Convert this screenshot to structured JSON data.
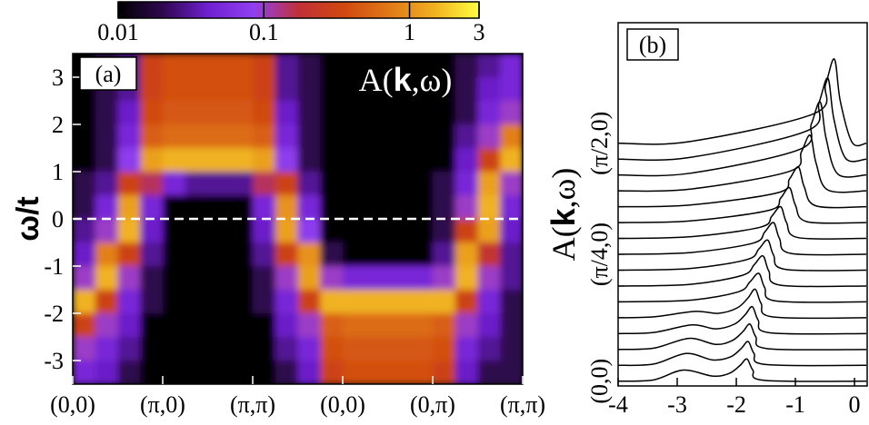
{
  "chart_data": [
    {
      "type": "heatmap",
      "label": "(a)",
      "title": [
        "A(",
        "k",
        ",ω)"
      ],
      "ylabel": "ω/t",
      "x": [
        0.125,
        0.375,
        0.625,
        0.875,
        1.125,
        1.375,
        1.625,
        1.875,
        2.125,
        2.375,
        2.625,
        2.875,
        3.125,
        3.375,
        3.625,
        3.875,
        4.125,
        4.375,
        4.625,
        4.875
      ],
      "y": [
        3.25,
        2.75,
        2.25,
        1.75,
        1.25,
        0.75,
        0.25,
        -0.25,
        -0.75,
        -1.25,
        -1.75,
        -2.25,
        -2.75,
        -3.25
      ],
      "z": [
        [
          0.01,
          0.02,
          0.03,
          0.3,
          0.4,
          0.4,
          0.4,
          0.4,
          0.3,
          0.03,
          0.02,
          0.01,
          0.01,
          0.01,
          0.01,
          0.01,
          0.01,
          0.02,
          0.03,
          0.05
        ],
        [
          0.01,
          0.02,
          0.03,
          0.3,
          0.4,
          0.4,
          0.4,
          0.4,
          0.3,
          0.03,
          0.02,
          0.01,
          0.01,
          0.01,
          0.01,
          0.01,
          0.01,
          0.02,
          0.04,
          0.05
        ],
        [
          0.01,
          0.02,
          0.04,
          0.35,
          0.45,
          0.45,
          0.45,
          0.45,
          0.35,
          0.04,
          0.02,
          0.01,
          0.01,
          0.01,
          0.01,
          0.01,
          0.01,
          0.02,
          0.05,
          0.1
        ],
        [
          0.01,
          0.02,
          0.05,
          0.5,
          0.6,
          0.6,
          0.6,
          0.6,
          0.5,
          0.05,
          0.02,
          0.01,
          0.01,
          0.01,
          0.01,
          0.01,
          0.01,
          0.03,
          0.1,
          0.8
        ],
        [
          0.01,
          0.02,
          0.08,
          1.2,
          1.5,
          1.5,
          1.5,
          1.5,
          1.2,
          0.08,
          0.02,
          0.01,
          0.01,
          0.01,
          0.01,
          0.01,
          0.01,
          0.04,
          0.3,
          1.5
        ],
        [
          0.02,
          0.03,
          0.3,
          0.15,
          0.05,
          0.03,
          0.03,
          0.03,
          0.15,
          0.3,
          0.03,
          0.01,
          0.01,
          0.01,
          0.01,
          0.01,
          0.02,
          0.05,
          1.2,
          0.1
        ],
        [
          0.02,
          0.05,
          1.2,
          0.05,
          0.01,
          0.01,
          0.01,
          0.01,
          0.05,
          1.0,
          0.05,
          0.01,
          0.01,
          0.01,
          0.01,
          0.01,
          0.02,
          0.1,
          1.5,
          0.05
        ],
        [
          0.03,
          0.1,
          1.5,
          0.04,
          0.01,
          0.01,
          0.01,
          0.01,
          0.04,
          1.2,
          0.08,
          0.01,
          0.01,
          0.01,
          0.01,
          0.01,
          0.02,
          0.3,
          1.2,
          0.04
        ],
        [
          0.04,
          0.8,
          0.3,
          0.03,
          0.01,
          0.01,
          0.01,
          0.01,
          0.03,
          0.3,
          1.0,
          0.02,
          0.01,
          0.01,
          0.01,
          0.01,
          0.03,
          1.2,
          0.2,
          0.03
        ],
        [
          0.1,
          1.5,
          0.1,
          0.02,
          0.01,
          0.01,
          0.01,
          0.01,
          0.02,
          0.1,
          1.2,
          0.1,
          0.05,
          0.05,
          0.05,
          0.05,
          0.1,
          1.5,
          0.1,
          0.03
        ],
        [
          1.5,
          0.3,
          0.05,
          0.02,
          0.01,
          0.01,
          0.01,
          0.01,
          0.02,
          0.05,
          0.3,
          1.5,
          1.5,
          1.5,
          1.5,
          1.5,
          1.5,
          0.3,
          0.05,
          0.02
        ],
        [
          0.3,
          0.1,
          0.04,
          0.01,
          0.01,
          0.01,
          0.01,
          0.01,
          0.01,
          0.04,
          0.1,
          0.5,
          0.6,
          0.6,
          0.6,
          0.6,
          0.5,
          0.1,
          0.04,
          0.02
        ],
        [
          0.1,
          0.05,
          0.03,
          0.01,
          0.01,
          0.01,
          0.01,
          0.01,
          0.01,
          0.03,
          0.05,
          0.4,
          0.45,
          0.45,
          0.45,
          0.45,
          0.4,
          0.05,
          0.03,
          0.02
        ],
        [
          0.05,
          0.04,
          0.02,
          0.01,
          0.01,
          0.01,
          0.01,
          0.01,
          0.01,
          0.02,
          0.04,
          0.3,
          0.4,
          0.4,
          0.4,
          0.4,
          0.3,
          0.04,
          0.02,
          0.02
        ]
      ],
      "xlim": [
        0,
        5
      ],
      "xticks": [
        {
          "value": 0,
          "label": "(0,0)"
        },
        {
          "value": 1,
          "label": "(π,0)"
        },
        {
          "value": 2,
          "label": "(π,π)"
        },
        {
          "value": 3,
          "label": "(0,0)"
        },
        {
          "value": 4,
          "label": "(0,π)"
        },
        {
          "value": 5,
          "label": "(π,π)"
        }
      ],
      "ylim": [
        -3.5,
        3.5
      ],
      "yticks": [
        -3,
        -2,
        -1,
        0,
        1,
        2,
        3
      ],
      "hline": {
        "value": 0,
        "color": "#ffffff",
        "style": "dashed"
      },
      "colorscale": "log",
      "clim": [
        0.01,
        3
      ],
      "cticks": [
        0.01,
        0.1,
        1,
        3
      ],
      "colormap": [
        "#000000",
        "#300850",
        "#7020d0",
        "#9040f0",
        "#c03038",
        "#d04810",
        "#e07818",
        "#f0b020",
        "#ffff40"
      ]
    },
    {
      "type": "waterfall",
      "label": "(b)",
      "ylabel": [
        "A(",
        "k",
        ",ω)"
      ],
      "color": "#000000",
      "xlim": [
        -4,
        0.23
      ],
      "xticks": [
        -4,
        -3,
        -2,
        -1,
        0
      ],
      "ylim": [
        -0.3,
        22.6
      ],
      "series": [
        {
          "name": "(0,0)",
          "x": [
            -4,
            -3.4,
            -2.9,
            -2.4,
            -2.12,
            -1.94,
            -1.82,
            -1.72,
            -1.52,
            0.2
          ],
          "values": [
            0,
            0.08,
            0.7,
            0.32,
            0.49,
            0.98,
            1.4,
            0.7,
            0.05,
            0
          ]
        },
        {
          "name": null,
          "x": [
            -4,
            -3.4,
            -2.85,
            -2.4,
            -2.1,
            -1.92,
            -1.8,
            -1.7,
            -1.5,
            0.2
          ],
          "values": [
            0,
            0.08,
            0.75,
            0.34,
            0.53,
            1.05,
            1.5,
            0.75,
            0.05,
            0
          ]
        },
        {
          "name": null,
          "x": [
            -4,
            -3.4,
            -2.8,
            -2.35,
            -2.07,
            -1.89,
            -1.77,
            -1.67,
            -1.47,
            0.2
          ],
          "values": [
            0,
            0.08,
            0.7,
            0.32,
            0.56,
            1.12,
            1.6,
            0.8,
            0.05,
            0
          ]
        },
        {
          "name": null,
          "x": [
            -4,
            -3.4,
            -2.75,
            -2.35,
            -2.03,
            -1.85,
            -1.73,
            -1.63,
            -1.43,
            0.2
          ],
          "values": [
            0,
            0.07,
            0.55,
            0.3,
            0.6,
            1.19,
            1.7,
            0.85,
            0.05,
            0
          ]
        },
        {
          "name": null,
          "x": [
            -4,
            -3.4,
            -2.7,
            -2.3,
            -1.98,
            -1.8,
            -1.68,
            -1.58,
            -1.38,
            0.2
          ],
          "values": [
            0,
            0.06,
            0.4,
            0.28,
            0.63,
            1.26,
            1.8,
            0.9,
            0.05,
            0
          ]
        },
        {
          "name": null,
          "x": [
            -4,
            -2.8,
            -1.97,
            -1.77,
            -1.62,
            -1.52,
            -1.32,
            0.2
          ],
          "values": [
            0,
            0.1,
            0.63,
            1.26,
            1.8,
            0.9,
            0.05,
            0
          ]
        },
        {
          "name": null,
          "x": [
            -4,
            -2.8,
            -1.9,
            -1.7,
            -1.55,
            -1.45,
            -1.25,
            0.2
          ],
          "values": [
            0,
            0.1,
            0.67,
            1.33,
            1.9,
            0.95,
            0.05,
            0
          ]
        },
        {
          "name": null,
          "x": [
            -4,
            -2.8,
            -1.82,
            -1.62,
            -1.47,
            -1.37,
            -1.17,
            0.2
          ],
          "values": [
            0,
            0.1,
            0.67,
            1.33,
            1.9,
            0.95,
            0.05,
            0
          ]
        },
        {
          "name": "(π/4,0)",
          "x": [
            -4,
            -2.8,
            -1.72,
            -1.52,
            -1.37,
            -1.27,
            -1.07,
            0.2
          ],
          "values": [
            0,
            0.1,
            0.7,
            1.4,
            2.0,
            1.0,
            0.05,
            0
          ]
        },
        {
          "name": null,
          "x": [
            -4,
            -2.8,
            -1.6,
            -1.4,
            -1.25,
            -1.15,
            -0.95,
            0.2
          ],
          "values": [
            0,
            0.1,
            0.7,
            1.4,
            2.0,
            1.0,
            0.05,
            0
          ]
        },
        {
          "name": null,
          "x": [
            -4,
            -2.8,
            -1.45,
            -1.25,
            -1.1,
            -1.0,
            -0.8,
            0.2
          ],
          "values": [
            0,
            0.1,
            0.77,
            1.54,
            2.2,
            1.1,
            0.05,
            0
          ]
        },
        {
          "name": null,
          "x": [
            -4,
            -2.8,
            -1.3,
            -1.1,
            -0.95,
            -0.85,
            -0.65,
            0.2
          ],
          "values": [
            0,
            0.1,
            0.88,
            1.75,
            2.5,
            1.25,
            0.05,
            0
          ]
        },
        {
          "name": null,
          "x": [
            -4,
            -2.8,
            -1.1,
            -0.9,
            -0.75,
            -0.65,
            -0.45,
            0.2
          ],
          "values": [
            0,
            0.1,
            1.23,
            2.45,
            3.5,
            1.75,
            0.05,
            0
          ]
        },
        {
          "name": null,
          "x": [
            -4,
            -2.8,
            -0.93,
            -0.73,
            -0.58,
            -0.48,
            -0.28,
            0.2
          ],
          "values": [
            0,
            0.1,
            1.61,
            3.22,
            4.6,
            2.3,
            0.05,
            0
          ]
        },
        {
          "name": null,
          "x": [
            -4,
            -2.8,
            -0.8,
            -0.6,
            -0.45,
            -0.35,
            -0.15,
            0.2
          ],
          "values": [
            0,
            0.1,
            1.79,
            3.57,
            5.1,
            2.55,
            0.05,
            0
          ]
        },
        {
          "name": "(π/2,0)",
          "x": [
            -4,
            -2.8,
            -0.69,
            -0.49,
            -0.34,
            -0.24,
            -0.04,
            0.2
          ],
          "values": [
            0,
            0.1,
            1.86,
            3.71,
            5.3,
            2.65,
            0.05,
            0
          ]
        }
      ]
    }
  ]
}
